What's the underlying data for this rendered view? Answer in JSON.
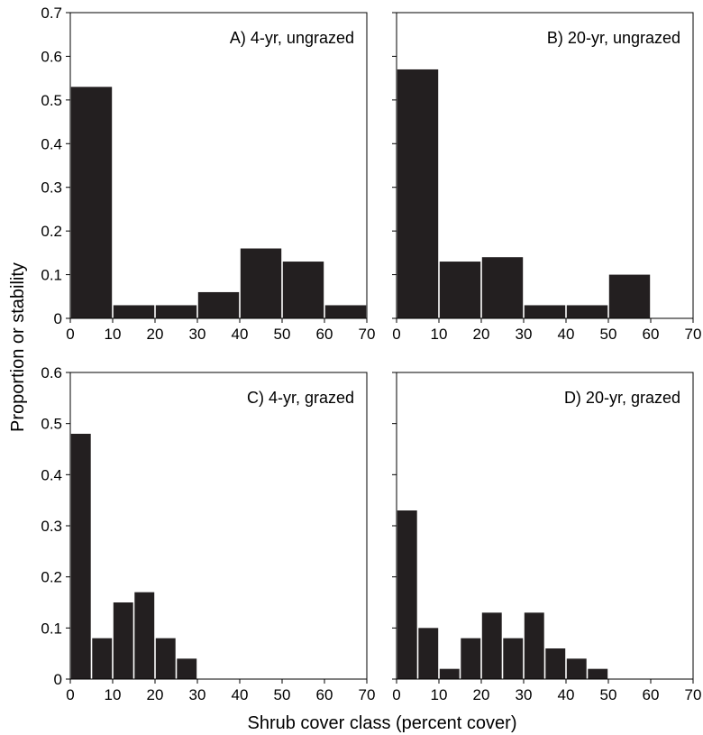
{
  "figure": {
    "xlabel": "Shrub cover class (percent cover)",
    "ylabel": "Proportion or stability",
    "bar_color": "#231f20",
    "background": "#ffffff"
  },
  "chart_data": [
    {
      "type": "bar",
      "title": "A) 4-yr, ungrazed",
      "bin_edges": [
        0,
        10,
        20,
        30,
        40,
        50,
        60,
        70
      ],
      "values": [
        0.53,
        0.03,
        0.03,
        0.06,
        0.16,
        0.13,
        0.03
      ],
      "xlim": [
        0,
        70
      ],
      "ylim": [
        0,
        0.7
      ],
      "xticks": [
        "0",
        "10",
        "20",
        "30",
        "40",
        "50",
        "60",
        "70"
      ],
      "yticks": [
        "0",
        "0.1",
        "0.2",
        "0.3",
        "0.4",
        "0.5",
        "0.6",
        "0.7"
      ]
    },
    {
      "type": "bar",
      "title": "B) 20-yr, ungrazed",
      "bin_edges": [
        0,
        10,
        20,
        30,
        40,
        50,
        60,
        70
      ],
      "values": [
        0.57,
        0.13,
        0.14,
        0.03,
        0.03,
        0.1,
        0.0
      ],
      "xlim": [
        0,
        70
      ],
      "ylim": [
        0,
        0.7
      ],
      "xticks": [
        "0",
        "10",
        "20",
        "30",
        "40",
        "50",
        "60",
        "70"
      ],
      "yticks": []
    },
    {
      "type": "bar",
      "title": "C) 4-yr, grazed",
      "bin_edges": [
        0,
        5,
        10,
        15,
        20,
        25,
        30,
        35,
        40,
        45,
        50,
        55,
        60,
        65,
        70
      ],
      "values": [
        0.48,
        0.08,
        0.15,
        0.17,
        0.08,
        0.04,
        0,
        0,
        0,
        0,
        0,
        0,
        0,
        0
      ],
      "xlim": [
        0,
        70
      ],
      "ylim": [
        0,
        0.6
      ],
      "xticks": [
        "0",
        "10",
        "20",
        "30",
        "40",
        "50",
        "60",
        "70"
      ],
      "yticks": [
        "0",
        "0.1",
        "0.2",
        "0.3",
        "0.4",
        "0.5",
        "0.6"
      ]
    },
    {
      "type": "bar",
      "title": "D) 20-yr, grazed",
      "bin_edges": [
        0,
        5,
        10,
        15,
        20,
        25,
        30,
        35,
        40,
        45,
        50,
        55,
        60,
        65,
        70
      ],
      "values": [
        0.33,
        0.1,
        0.02,
        0.08,
        0.13,
        0.08,
        0.13,
        0.06,
        0.04,
        0.02,
        0,
        0,
        0,
        0
      ],
      "xlim": [
        0,
        70
      ],
      "ylim": [
        0,
        0.6
      ],
      "xticks": [
        "0",
        "10",
        "20",
        "30",
        "40",
        "50",
        "60",
        "70"
      ],
      "yticks": []
    }
  ]
}
